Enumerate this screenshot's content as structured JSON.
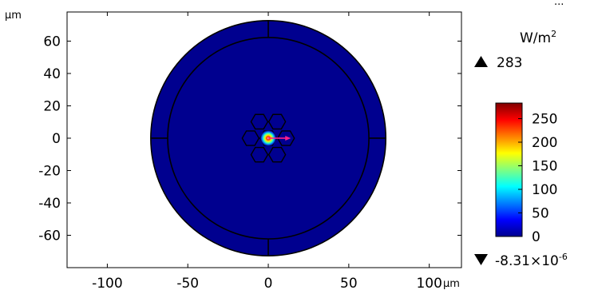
{
  "chart_data": {
    "type": "heatmap",
    "title": "",
    "corner_label": "...",
    "xlabel": "μm",
    "ylabel": "μm",
    "xlim": [
      -125,
      120
    ],
    "ylim": [
      -80,
      78
    ],
    "x_ticks": [
      {
        "value": -100,
        "label": "-100"
      },
      {
        "value": -50,
        "label": "-50"
      },
      {
        "value": 0,
        "label": "0"
      },
      {
        "value": 50,
        "label": "50"
      },
      {
        "value": 100,
        "label": "100"
      }
    ],
    "y_ticks": [
      {
        "value": 60,
        "label": "60"
      },
      {
        "value": 40,
        "label": "40"
      },
      {
        "value": 20,
        "label": "20"
      },
      {
        "value": 0,
        "label": "0"
      },
      {
        "value": -20,
        "label": "-20"
      },
      {
        "value": -40,
        "label": "-40"
      },
      {
        "value": -60,
        "label": "-60"
      }
    ],
    "geometry": {
      "outer_radius": 73,
      "inner_radius": 62.5,
      "hexagon_circumradius": 5.2,
      "hexagon_centers": [
        [
          -5.5,
          10.2
        ],
        [
          5.5,
          10.2
        ],
        [
          -11,
          0
        ],
        [
          11,
          0
        ],
        [
          -5.5,
          -10.2
        ],
        [
          5.5,
          -10.2
        ]
      ],
      "core_radius": 4.5,
      "field_peak": [
        0,
        0
      ],
      "arrow_end": [
        14,
        0
      ]
    },
    "colorbar": {
      "unit_base": "W/m",
      "unit_exp": "2",
      "max_value": "283",
      "min_value_mantissa": "-8.31×10",
      "min_value_exp": "-6",
      "ticks": [
        {
          "value": 250,
          "label": "250"
        },
        {
          "value": 200,
          "label": "200"
        },
        {
          "value": 150,
          "label": "150"
        },
        {
          "value": 100,
          "label": "100"
        },
        {
          "value": 50,
          "label": "50"
        },
        {
          "value": 0,
          "label": "0"
        }
      ],
      "range": [
        0,
        283
      ]
    },
    "colors": {
      "background_field": "#00008f",
      "outline": "#000000",
      "arrow": "#ff1f8a"
    },
    "grid": false
  }
}
